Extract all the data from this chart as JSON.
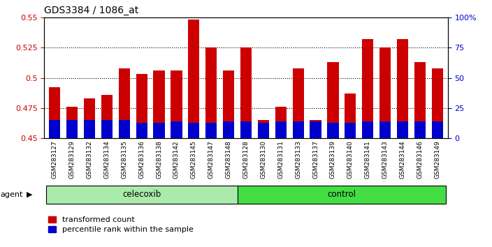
{
  "title": "GDS3384 / 1086_at",
  "samples": [
    "GSM283127",
    "GSM283129",
    "GSM283132",
    "GSM283134",
    "GSM283135",
    "GSM283136",
    "GSM283138",
    "GSM283142",
    "GSM283145",
    "GSM283147",
    "GSM283148",
    "GSM283128",
    "GSM283130",
    "GSM283131",
    "GSM283133",
    "GSM283137",
    "GSM283139",
    "GSM283140",
    "GSM283141",
    "GSM283143",
    "GSM283144",
    "GSM283146",
    "GSM283149"
  ],
  "transformed_count": [
    0.492,
    0.476,
    0.483,
    0.486,
    0.508,
    0.503,
    0.506,
    0.506,
    0.548,
    0.525,
    0.506,
    0.525,
    0.465,
    0.476,
    0.508,
    0.465,
    0.513,
    0.487,
    0.532,
    0.525,
    0.532,
    0.513,
    0.508
  ],
  "percentile_rank_pct": [
    15,
    15,
    15,
    15,
    15,
    13,
    13,
    14,
    13,
    13,
    14,
    14,
    13,
    14,
    14,
    14,
    13,
    13,
    14,
    14,
    14,
    14,
    14
  ],
  "celecoxib_count": 11,
  "control_count": 12,
  "bar_color_red": "#cc0000",
  "bar_color_blue": "#0000cc",
  "ylim_left": [
    0.45,
    0.55
  ],
  "ylim_right": [
    0,
    100
  ],
  "yticks_left": [
    0.45,
    0.475,
    0.5,
    0.525,
    0.55
  ],
  "yticks_right": [
    0,
    25,
    50,
    75,
    100
  ],
  "ytick_labels_left": [
    "0.45",
    "0.475",
    "0.5",
    "0.525",
    "0.55"
  ],
  "ytick_labels_right": [
    "0",
    "25",
    "50",
    "75",
    "100%"
  ],
  "bg_plot": "#ffffff",
  "bg_celecoxib": "#aaeaaa",
  "bg_control": "#44dd44",
  "agent_label": "agent",
  "celecoxib_label": "celecoxib",
  "control_label": "control",
  "legend_red": "transformed count",
  "legend_blue": "percentile rank within the sample",
  "bar_width": 0.65
}
